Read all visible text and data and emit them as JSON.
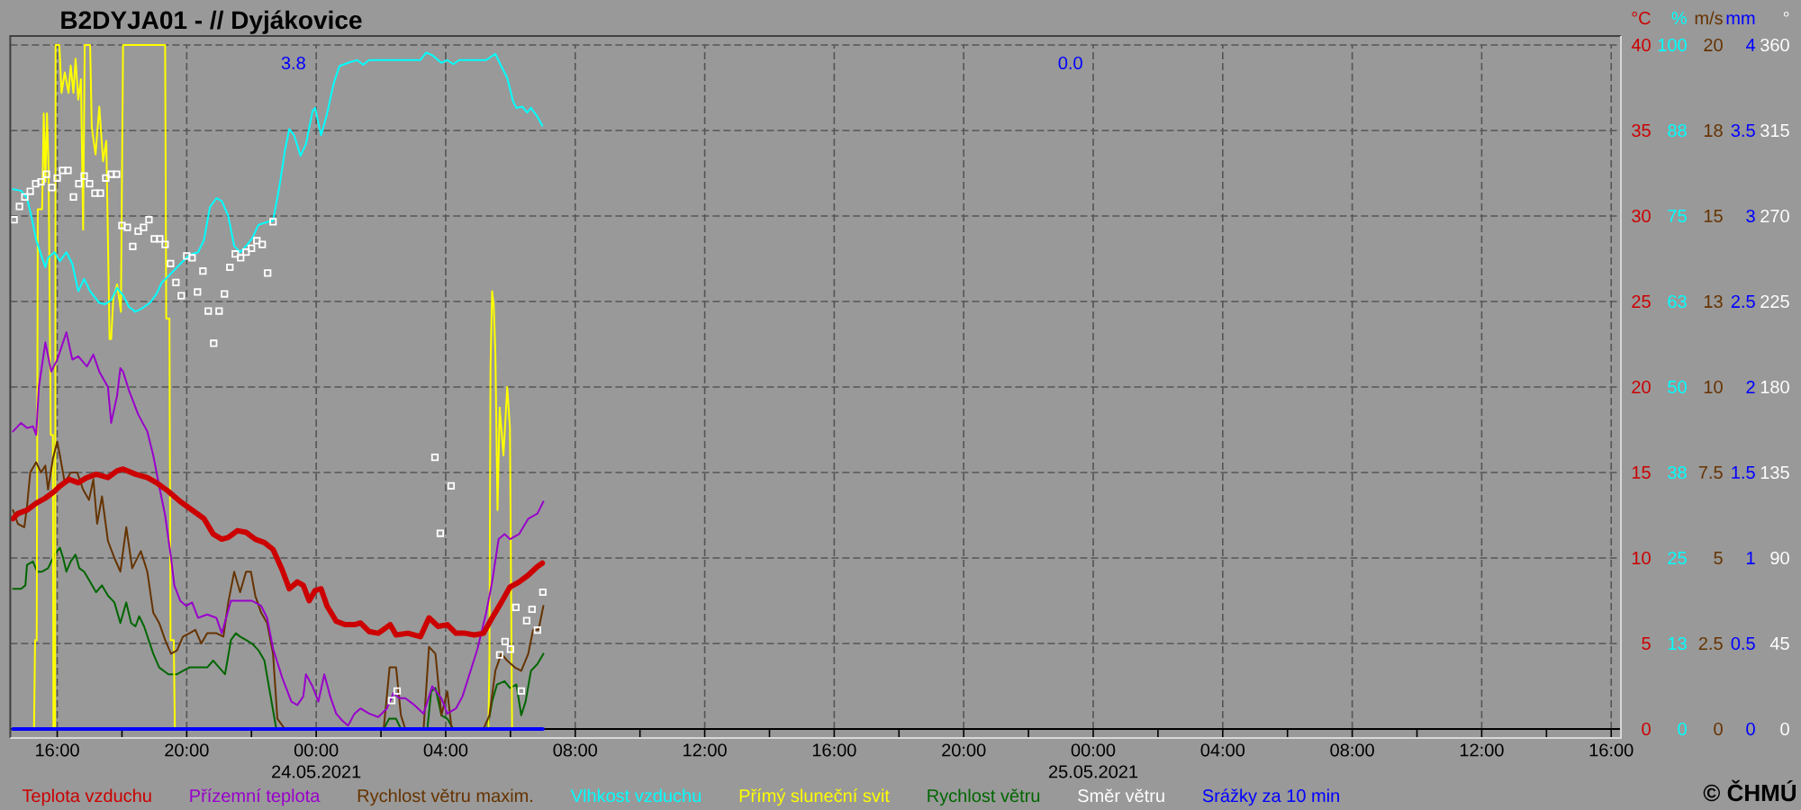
{
  "chart_data": [
    {
      "type": "line",
      "title": "B2DYJA01 - // Dyjákovice",
      "ylabel": "°C",
      "y2label": "%",
      "y3label": "m/s",
      "xlim": [
        "2021-05-23T14:33",
        "2021-05-25T16:18"
      ],
      "xticks": [
        {
          "value": "2021-05-23T16:00",
          "label": "16:00"
        },
        {
          "value": "2021-05-23T18:00",
          "label": null
        },
        {
          "value": "2021-05-23T20:00",
          "label": "20:00"
        },
        {
          "value": "2021-05-23T22:00",
          "label": null
        },
        {
          "value": "2021-05-24T00:00",
          "label": "00:00 24.05.2021"
        },
        {
          "value": "2021-05-24T02:00",
          "label": null
        },
        {
          "value": "2021-05-24T04:00",
          "label": "04:00"
        },
        {
          "value": "2021-05-24T06:00",
          "label": null
        },
        {
          "value": "2021-05-24T08:00",
          "label": "08:00"
        },
        {
          "value": "2021-05-24T10:00",
          "label": null
        },
        {
          "value": "2021-05-24T12:00",
          "label": "12:00"
        },
        {
          "value": "2021-05-24T14:00",
          "label": null
        },
        {
          "value": "2021-05-24T16:00",
          "label": "16:00"
        },
        {
          "value": "2021-05-24T18:00",
          "label": null
        },
        {
          "value": "2021-05-24T20:00",
          "label": "20:00"
        },
        {
          "value": "2021-05-24T22:00",
          "label": null
        },
        {
          "value": "2021-05-25T00:00",
          "label": "00:00 25.05.2021"
        },
        {
          "value": "2021-05-25T02:00",
          "label": null
        },
        {
          "value": "2021-05-25T04:00",
          "label": "04:00"
        },
        {
          "value": "2021-05-25T06:00",
          "label": null
        },
        {
          "value": "2021-05-25T08:00",
          "label": "08:00"
        },
        {
          "value": "2021-05-25T10:00",
          "label": null
        },
        {
          "value": "2021-05-25T12:00",
          "label": "12:00"
        },
        {
          "value": "2021-05-25T14:00",
          "label": null
        },
        {
          "value": "2021-05-25T16:00",
          "label": "16:00"
        }
      ],
      "ylim": [
        0,
        40
      ],
      "yticks": [
        0,
        5,
        10,
        15,
        20,
        25,
        30,
        35,
        40
      ],
      "y2lim": [
        0,
        100
      ],
      "y2ticks": [
        0,
        {
          "value": 12.5,
          "label": "13"
        },
        25,
        {
          "value": 37.5,
          "label": "38"
        },
        50,
        {
          "value": 62.5,
          "label": "63"
        },
        75,
        {
          "value": 87.5,
          "label": "88"
        },
        100
      ],
      "y3lim": [
        0,
        20
      ],
      "y3ticks": [
        0,
        2.5,
        5,
        7.5,
        10,
        {
          "value": 12.5,
          "label": "13"
        },
        15,
        {
          "value": 17.5,
          "label": "18"
        },
        20
      ],
      "grid": true,
      "legend": "bottom",
      "annotations": [
        "© ČHMÚ"
      ],
      "series": [
        {
          "name": "Teplota vzduchu",
          "color": "#cc0000",
          "x": [
            "2021-05-23T14:38",
            "2021-05-23T14:47",
            "2021-05-23T15:04",
            "2021-05-23T15:21",
            "2021-05-23T15:38",
            "2021-05-23T15:55",
            "2021-05-23T16:05",
            "2021-05-23T16:22",
            "2021-05-23T16:39",
            "2021-05-23T16:55",
            "2021-05-23T17:12",
            "2021-05-23T17:34",
            "2021-05-23T17:51",
            "2021-05-23T18:02",
            "2021-05-23T18:25",
            "2021-05-23T18:47",
            "2021-05-23T19:04",
            "2021-05-23T19:26",
            "2021-05-23T19:48",
            "2021-05-23T20:10",
            "2021-05-23T20:32",
            "2021-05-23T20:49",
            "2021-05-23T21:05",
            "2021-05-23T21:17",
            "2021-05-23T21:34",
            "2021-05-23T21:50",
            "2021-05-23T22:07",
            "2021-05-23T22:24",
            "2021-05-23T22:40",
            "2021-05-23T22:57",
            "2021-05-23T23:10",
            "2021-05-23T23:25",
            "2021-05-23T23:36",
            "2021-05-23T23:47",
            "2021-05-23T23:58",
            "2021-05-24T00:09",
            "2021-05-24T00:20",
            "2021-05-24T00:37",
            "2021-05-24T00:54",
            "2021-05-24T01:11",
            "2021-05-24T01:22",
            "2021-05-24T01:38",
            "2021-05-24T01:55",
            "2021-05-24T02:17",
            "2021-05-24T02:28",
            "2021-05-24T02:50",
            "2021-05-24T03:13",
            "2021-05-24T03:29",
            "2021-05-24T03:46",
            "2021-05-24T04:03",
            "2021-05-24T04:19",
            "2021-05-24T04:36",
            "2021-05-24T04:53",
            "2021-05-24T05:10",
            "2021-05-24T05:26",
            "2021-05-24T05:43",
            "2021-05-24T05:59",
            "2021-05-24T06:16",
            "2021-05-24T06:33",
            "2021-05-24T06:50",
            "2021-05-24T06:59"
          ],
          "values": [
            12.3,
            12.6,
            12.8,
            13.2,
            13.5,
            13.9,
            14.2,
            14.6,
            14.4,
            14.7,
            14.9,
            14.7,
            15.1,
            15.2,
            14.9,
            14.7,
            14.4,
            13.9,
            13.3,
            12.8,
            12.3,
            11.4,
            11.1,
            11.2,
            11.6,
            11.5,
            11.1,
            10.9,
            10.5,
            9.3,
            8.2,
            8.6,
            8.4,
            7.5,
            8.1,
            8.2,
            7.2,
            6.3,
            6.1,
            6.1,
            6.2,
            5.7,
            5.6,
            6.1,
            5.5,
            5.6,
            5.4,
            6.5,
            6.0,
            6.1,
            5.6,
            5.6,
            5.5,
            5.6,
            6.5,
            7.4,
            8.3,
            8.6,
            9.0,
            9.5,
            9.7
          ]
        },
        {
          "name": "Přízemní teplota",
          "color": "#9900cc",
          "x": [
            "2021-05-23T14:38",
            "2021-05-23T14:53",
            "2021-05-23T15:04",
            "2021-05-23T15:15",
            "2021-05-23T15:21",
            "2021-05-23T15:26",
            "2021-05-23T15:38",
            "2021-05-23T15:49",
            "2021-05-23T16:00",
            "2021-05-23T16:17",
            "2021-05-23T16:28",
            "2021-05-23T16:39",
            "2021-05-23T16:55",
            "2021-05-23T17:07",
            "2021-05-23T17:18",
            "2021-05-23T17:34",
            "2021-05-23T17:40",
            "2021-05-23T17:51",
            "2021-05-23T17:57",
            "2021-05-23T18:02",
            "2021-05-23T18:13",
            "2021-05-23T18:30",
            "2021-05-23T18:47",
            "2021-05-23T18:58",
            "2021-05-23T19:09",
            "2021-05-23T19:20",
            "2021-05-23T19:31",
            "2021-05-23T19:37",
            "2021-05-23T19:48",
            "2021-05-23T19:59",
            "2021-05-23T20:10",
            "2021-05-23T20:21",
            "2021-05-23T20:38",
            "2021-05-23T20:55",
            "2021-05-23T21:05",
            "2021-05-23T21:22",
            "2021-05-23T21:39",
            "2021-05-23T22:01",
            "2021-05-23T22:18",
            "2021-05-23T22:29",
            "2021-05-23T22:40",
            "2021-05-23T22:57",
            "2021-05-23T23:14",
            "2021-05-23T23:25",
            "2021-05-23T23:36",
            "2021-05-23T23:41",
            "2021-05-23T23:53",
            "2021-05-24T00:04",
            "2021-05-24T00:15",
            "2021-05-24T00:26",
            "2021-05-24T00:37",
            "2021-05-24T00:48",
            "2021-05-24T00:59",
            "2021-05-24T01:11",
            "2021-05-24T01:22",
            "2021-05-24T01:38",
            "2021-05-24T01:55",
            "2021-05-24T02:11",
            "2021-05-24T02:23",
            "2021-05-24T02:34",
            "2021-05-24T02:45",
            "2021-05-24T03:02",
            "2021-05-24T03:19",
            "2021-05-24T03:35",
            "2021-05-24T03:52",
            "2021-05-24T04:03",
            "2021-05-24T04:19",
            "2021-05-24T04:31",
            "2021-05-24T04:42",
            "2021-05-24T04:59",
            "2021-05-24T05:15",
            "2021-05-24T05:26",
            "2021-05-24T05:38",
            "2021-05-24T05:49",
            "2021-05-24T05:59",
            "2021-05-24T06:16",
            "2021-05-24T06:33",
            "2021-05-24T06:50",
            "2021-05-24T07:01"
          ],
          "values": [
            17.4,
            17.9,
            17.6,
            17.7,
            17.2,
            20.0,
            22.6,
            20.9,
            21.6,
            23.2,
            21.6,
            21.8,
            21.2,
            21.9,
            20.9,
            20.0,
            17.9,
            19.5,
            21.1,
            20.9,
            19.8,
            18.4,
            17.4,
            16.0,
            14.2,
            12.5,
            10.0,
            8.4,
            7.5,
            7.2,
            7.4,
            6.5,
            6.7,
            6.5,
            5.6,
            7.5,
            7.5,
            7.5,
            7.2,
            6.5,
            4.7,
            3.0,
            1.6,
            1.4,
            1.9,
            3.2,
            2.5,
            1.6,
            3.2,
            1.9,
            0.9,
            0.5,
            0.2,
            0.9,
            1.2,
            0.9,
            0.7,
            1.2,
            2.1,
            1.8,
            1.8,
            1.4,
            0.9,
            2.5,
            1.8,
            0.9,
            1.2,
            1.9,
            3.0,
            4.7,
            6.8,
            8.6,
            11.1,
            11.4,
            11.1,
            11.4,
            12.3,
            12.6,
            13.3
          ]
        },
        {
          "name": "Rychlost větru maxim.",
          "color": "#663300",
          "axis": "y3",
          "x": [
            "2021-05-23T14:38",
            "2021-05-23T14:47",
            "2021-05-23T14:59",
            "2021-05-23T15:04",
            "2021-05-23T15:10",
            "2021-05-23T15:21",
            "2021-05-23T15:30",
            "2021-05-23T15:38",
            "2021-05-23T15:43",
            "2021-05-23T15:52",
            "2021-05-23T16:00",
            "2021-05-23T16:05",
            "2021-05-23T16:14",
            "2021-05-23T16:25",
            "2021-05-23T16:37",
            "2021-05-23T16:48",
            "2021-05-23T16:59",
            "2021-05-23T17:07",
            "2021-05-23T17:14",
            "2021-05-23T17:23",
            "2021-05-23T17:34",
            "2021-05-23T17:46",
            "2021-05-23T17:57",
            "2021-05-23T18:08",
            "2021-05-23T18:19",
            "2021-05-23T18:35",
            "2021-05-23T18:47",
            "2021-05-23T18:58",
            "2021-05-23T19:09",
            "2021-05-23T19:20",
            "2021-05-23T19:31",
            "2021-05-23T19:42",
            "2021-05-23T19:53",
            "2021-05-23T20:05",
            "2021-05-23T20:16",
            "2021-05-23T20:27",
            "2021-05-23T20:38",
            "2021-05-23T20:55",
            "2021-05-23T21:08",
            "2021-05-23T21:17",
            "2021-05-23T21:28",
            "2021-05-23T21:39",
            "2021-05-23T21:50",
            "2021-05-23T21:59",
            "2021-05-23T22:07",
            "2021-05-23T22:18",
            "2021-05-23T22:29",
            "2021-05-23T22:40",
            "2021-05-23T22:48",
            "2021-05-23T23:02",
            "2021-05-24T02:05",
            "2021-05-24T02:16",
            "2021-05-24T02:28",
            "2021-05-24T02:37",
            "2021-05-24T02:45",
            "2021-05-24T03:19",
            "2021-05-24T03:29",
            "2021-05-24T03:41",
            "2021-05-24T03:52",
            "2021-05-24T04:03",
            "2021-05-24T04:11",
            "2021-05-24T05:10",
            "2021-05-24T05:21",
            "2021-05-24T05:32",
            "2021-05-24T05:43",
            "2021-05-24T05:54",
            "2021-05-24T06:08",
            "2021-05-24T06:20",
            "2021-05-24T06:33",
            "2021-05-24T06:42",
            "2021-05-24T06:52",
            "2021-05-24T07:01"
          ],
          "values": [
            6.4,
            6.0,
            5.9,
            6.5,
            7.5,
            7.8,
            7.5,
            7.7,
            7.0,
            7.9,
            8.4,
            8.0,
            7.2,
            7.5,
            7.5,
            7.0,
            6.7,
            7.3,
            6.0,
            6.8,
            5.5,
            5.0,
            4.6,
            5.9,
            4.7,
            5.2,
            4.6,
            3.4,
            3.1,
            2.6,
            2.2,
            2.3,
            2.7,
            2.8,
            2.9,
            2.5,
            2.8,
            2.8,
            2.7,
            3.7,
            4.6,
            4.0,
            4.6,
            4.6,
            3.9,
            3.4,
            3.1,
            2.2,
            0.3,
            0,
            0,
            1.8,
            1.8,
            0.4,
            0,
            0,
            2.4,
            2.2,
            0.4,
            1.1,
            0,
            0,
            0.4,
            1.7,
            2.2,
            2.0,
            1.8,
            1.7,
            2.2,
            2.9,
            2.9,
            3.6
          ]
        },
        {
          "name": "Vlhkost vzduchu",
          "color": "#00ffff",
          "axis": "y2",
          "x": [
            "2021-05-23T14:38",
            "2021-05-23T14:53",
            "2021-05-23T15:04",
            "2021-05-23T15:12",
            "2021-05-23T15:21",
            "2021-05-23T15:32",
            "2021-05-23T15:38",
            "2021-05-23T15:43",
            "2021-05-23T15:55",
            "2021-05-23T16:05",
            "2021-05-23T16:17",
            "2021-05-23T16:28",
            "2021-05-23T16:39",
            "2021-05-23T16:50",
            "2021-05-23T17:01",
            "2021-05-23T17:18",
            "2021-05-23T17:29",
            "2021-05-23T17:40",
            "2021-05-23T17:51",
            "2021-05-23T18:02",
            "2021-05-23T18:13",
            "2021-05-23T18:25",
            "2021-05-23T18:35",
            "2021-05-23T18:52",
            "2021-05-23T19:04",
            "2021-05-23T19:14",
            "2021-05-23T19:26",
            "2021-05-23T19:48",
            "2021-05-23T20:05",
            "2021-05-23T20:21",
            "2021-05-23T20:32",
            "2021-05-23T20:43",
            "2021-05-23T20:55",
            "2021-05-23T21:05",
            "2021-05-23T21:17",
            "2021-05-23T21:28",
            "2021-05-23T21:39",
            "2021-05-23T21:50",
            "2021-05-23T22:01",
            "2021-05-23T22:13",
            "2021-05-23T22:29",
            "2021-05-23T22:40",
            "2021-05-23T22:52",
            "2021-05-23T23:02",
            "2021-05-23T23:10",
            "2021-05-23T23:19",
            "2021-05-23T23:31",
            "2021-05-23T23:41",
            "2021-05-23T23:53",
            "2021-05-23T23:58",
            "2021-05-24T00:09",
            "2021-05-24T00:20",
            "2021-05-24T00:32",
            "2021-05-24T00:43",
            "2021-05-24T00:59",
            "2021-05-24T01:16",
            "2021-05-24T01:27",
            "2021-05-24T01:38",
            "2021-05-24T03:13",
            "2021-05-24T03:24",
            "2021-05-24T03:35",
            "2021-05-24T03:52",
            "2021-05-24T04:03",
            "2021-05-24T04:14",
            "2021-05-24T04:25",
            "2021-05-24T05:15",
            "2021-05-24T05:32",
            "2021-05-24T05:43",
            "2021-05-24T05:54",
            "2021-05-24T06:05",
            "2021-05-24T06:11",
            "2021-05-24T06:22",
            "2021-05-24T06:31",
            "2021-05-24T06:38",
            "2021-05-24T06:50",
            "2021-05-24T06:59"
          ],
          "values": [
            78.9,
            78.7,
            77.6,
            75.0,
            71.5,
            68.9,
            67.5,
            68.9,
            69.7,
            68.4,
            69.7,
            68.0,
            64.0,
            65.8,
            64.0,
            62.3,
            62.1,
            62.7,
            64.5,
            63.4,
            61.7,
            61.0,
            61.4,
            62.3,
            63.6,
            65.3,
            66.2,
            68.0,
            69.3,
            69.7,
            71.5,
            76.3,
            77.6,
            77.2,
            75.0,
            70.6,
            69.7,
            70.6,
            71.7,
            73.7,
            74.1,
            74.3,
            79.4,
            84.6,
            87.7,
            86.8,
            83.8,
            85.5,
            90.3,
            90.8,
            86.8,
            89.9,
            94.3,
            96.9,
            97.4,
            97.8,
            97.1,
            97.8,
            97.8,
            98.9,
            98.5,
            97.4,
            97.8,
            97.2,
            97.8,
            97.8,
            98.7,
            96.9,
            95.2,
            91.7,
            90.8,
            91.0,
            90.1,
            90.8,
            89.5,
            88.2
          ]
        },
        {
          "name": "Přímý sluneční svit",
          "color": "#ffff00",
          "axis": "y2",
          "x": [
            "2021-05-23T14:38",
            "2021-05-23T15:17",
            "2021-05-23T15:19",
            "2021-05-23T15:22",
            "2021-05-23T15:24",
            "2021-05-23T15:32",
            "2021-05-23T15:35",
            "2021-05-23T15:38",
            "2021-05-23T15:41",
            "2021-05-23T15:44",
            "2021-05-23T15:48",
            "2021-05-23T15:52",
            "2021-05-23T15:53",
            "2021-05-23T15:56",
            "2021-05-23T15:57",
            "2021-05-23T16:04",
            "2021-05-23T16:08",
            "2021-05-23T16:14",
            "2021-05-23T16:21",
            "2021-05-23T16:25",
            "2021-05-23T16:30",
            "2021-05-23T16:34",
            "2021-05-23T16:39",
            "2021-05-23T16:44",
            "2021-05-23T16:48",
            "2021-05-23T16:51",
            "2021-05-23T17:01",
            "2021-05-23T17:04",
            "2021-05-23T17:11",
            "2021-05-23T17:18",
            "2021-05-23T17:25",
            "2021-05-23T17:31",
            "2021-05-23T17:37",
            "2021-05-23T17:40",
            "2021-05-23T17:44",
            "2021-05-23T17:51",
            "2021-05-23T17:58",
            "2021-05-23T18:02",
            "2021-05-23T19:20",
            "2021-05-23T19:22",
            "2021-05-23T19:28",
            "2021-05-23T19:30",
            "2021-05-23T19:36",
            "2021-05-23T19:38",
            "2021-05-24T05:19",
            "2021-05-24T05:21",
            "2021-05-24T05:23",
            "2021-05-24T05:26",
            "2021-05-24T05:29",
            "2021-05-24T05:32",
            "2021-05-24T05:36",
            "2021-05-24T05:40",
            "2021-05-24T05:43",
            "2021-05-24T05:47",
            "2021-05-24T05:54",
            "2021-05-24T05:59",
            "2021-05-24T06:03",
            "2021-05-24T06:59"
          ],
          "values": [
            0,
            0,
            13,
            13,
            76,
            76,
            90,
            80,
            90,
            82,
            43,
            43,
            0,
            0,
            100,
            100,
            93,
            96,
            93,
            97,
            93,
            98,
            92,
            95,
            73,
            100,
            100,
            88,
            84,
            91,
            83,
            86,
            57,
            57,
            63,
            65,
            61,
            100,
            100,
            60,
            60,
            13,
            13,
            0,
            0,
            10,
            53,
            64,
            62,
            55,
            32,
            47,
            44,
            40,
            50,
            44,
            0,
            0
          ]
        },
        {
          "name": "Rychlost větru",
          "color": "#006600",
          "axis": "y3",
          "x": [
            "2021-05-23T14:38",
            "2021-05-23T14:53",
            "2021-05-23T15:01",
            "2021-05-23T15:04",
            "2021-05-23T15:15",
            "2021-05-23T15:23",
            "2021-05-23T15:32",
            "2021-05-23T15:43",
            "2021-05-23T15:55",
            "2021-05-23T16:05",
            "2021-05-23T16:11",
            "2021-05-23T16:17",
            "2021-05-23T16:25",
            "2021-05-23T16:34",
            "2021-05-23T16:41",
            "2021-05-23T16:50",
            "2021-05-23T17:01",
            "2021-05-23T17:12",
            "2021-05-23T17:23",
            "2021-05-23T17:34",
            "2021-05-23T17:46",
            "2021-05-23T17:57",
            "2021-05-23T18:08",
            "2021-05-23T18:17",
            "2021-05-23T18:25",
            "2021-05-23T18:32",
            "2021-05-23T18:41",
            "2021-05-23T18:58",
            "2021-05-23T19:09",
            "2021-05-23T19:26",
            "2021-05-23T19:42",
            "2021-05-23T19:53",
            "2021-05-23T20:05",
            "2021-05-23T20:16",
            "2021-05-23T20:27",
            "2021-05-23T20:38",
            "2021-05-23T20:49",
            "2021-05-23T21:00",
            "2021-05-23T21:11",
            "2021-05-23T21:22",
            "2021-05-23T21:31",
            "2021-05-23T21:39",
            "2021-05-23T21:50",
            "2021-05-23T22:01",
            "2021-05-23T22:13",
            "2021-05-23T22:24",
            "2021-05-23T22:35",
            "2021-05-23T22:46",
            "2021-05-24T02:05",
            "2021-05-24T02:15",
            "2021-05-24T02:28",
            "2021-05-24T02:37",
            "2021-05-24T03:26",
            "2021-05-24T03:33",
            "2021-05-24T03:41",
            "2021-05-24T03:52",
            "2021-05-24T04:03",
            "2021-05-24T04:14",
            "2021-05-24T05:17",
            "2021-05-24T05:26",
            "2021-05-24T05:35",
            "2021-05-24T05:49",
            "2021-05-24T05:59",
            "2021-05-24T06:11",
            "2021-05-24T06:20",
            "2021-05-24T06:28",
            "2021-05-24T06:38",
            "2021-05-24T06:50",
            "2021-05-24T07:01"
          ],
          "values": [
            4.1,
            4.1,
            4.2,
            4.8,
            4.9,
            4.6,
            4.6,
            4.7,
            5.1,
            5.3,
            5.0,
            4.6,
            4.9,
            5.1,
            4.7,
            4.6,
            4.3,
            4.0,
            4.2,
            3.9,
            3.7,
            3.1,
            3.7,
            3.1,
            3.0,
            3.3,
            3.0,
            2.2,
            1.8,
            1.6,
            1.6,
            1.7,
            1.8,
            1.8,
            1.8,
            1.8,
            2.0,
            1.8,
            1.6,
            2.6,
            2.8,
            2.7,
            2.6,
            2.5,
            2.3,
            2.0,
            1.0,
            0,
            0,
            0.3,
            0.3,
            0,
            0,
            1.1,
            1.2,
            0.4,
            0.3,
            0,
            0,
            0.8,
            1.3,
            1.4,
            1.2,
            1.3,
            0.4,
            0.8,
            1.7,
            1.9,
            2.2
          ]
        }
      ]
    },
    {
      "type": "line",
      "ylabel": "mm",
      "y2label": "°",
      "xlim": [
        "2021-05-23T14:33",
        "2021-05-25T16:18"
      ],
      "ylim": [
        0,
        4
      ],
      "yticks": [
        0,
        0.5,
        1,
        1.5,
        2,
        2.5,
        3,
        3.5,
        4
      ],
      "y2lim": [
        0,
        360
      ],
      "y2ticks": [
        0,
        45,
        90,
        135,
        180,
        225,
        270,
        315,
        360
      ],
      "tick_labels": "y",
      "legend": "bottom",
      "annotations": [
        "3.8",
        "0.0"
      ],
      "series": [
        {
          "name": "Směr větru",
          "color": "#ffffff",
          "axis": "y2",
          "type": "scatter",
          "marker": "square",
          "x": [
            "2021-05-23T14:40",
            "2021-05-23T14:50",
            "2021-05-23T15:00",
            "2021-05-23T15:10",
            "2021-05-23T15:20",
            "2021-05-23T15:30",
            "2021-05-23T15:40",
            "2021-05-23T15:50",
            "2021-05-23T16:00",
            "2021-05-23T16:10",
            "2021-05-23T16:20",
            "2021-05-23T16:30",
            "2021-05-23T16:40",
            "2021-05-23T16:50",
            "2021-05-23T17:00",
            "2021-05-23T17:10",
            "2021-05-23T17:20",
            "2021-05-23T17:30",
            "2021-05-23T17:40",
            "2021-05-23T17:50",
            "2021-05-23T18:00",
            "2021-05-23T18:10",
            "2021-05-23T18:20",
            "2021-05-23T18:30",
            "2021-05-23T18:40",
            "2021-05-23T18:50",
            "2021-05-23T19:00",
            "2021-05-23T19:10",
            "2021-05-23T19:20",
            "2021-05-23T19:30",
            "2021-05-23T19:40",
            "2021-05-23T19:50",
            "2021-05-23T20:00",
            "2021-05-23T20:10",
            "2021-05-23T20:20",
            "2021-05-23T20:30",
            "2021-05-23T20:40",
            "2021-05-23T20:50",
            "2021-05-23T21:00",
            "2021-05-23T21:10",
            "2021-05-23T21:20",
            "2021-05-23T21:30",
            "2021-05-23T21:40",
            "2021-05-23T21:50",
            "2021-05-23T22:00",
            "2021-05-23T22:10",
            "2021-05-23T22:20",
            "2021-05-23T22:30",
            "2021-05-23T22:40",
            "2021-05-24T02:20",
            "2021-05-24T02:30",
            "2021-05-24T03:40",
            "2021-05-24T03:50",
            "2021-05-24T04:10",
            "2021-05-24T05:40",
            "2021-05-24T05:50",
            "2021-05-24T06:00",
            "2021-05-24T06:10",
            "2021-05-24T06:20",
            "2021-05-24T06:30",
            "2021-05-24T06:40",
            "2021-05-24T06:50",
            "2021-05-24T07:00"
          ],
          "values": [
            268,
            275,
            280,
            283,
            287,
            288,
            292,
            285,
            290,
            294,
            294,
            280,
            287,
            291,
            287,
            282,
            282,
            290,
            292,
            292,
            265,
            264,
            254,
            262,
            264,
            268,
            258,
            258,
            255,
            245,
            235,
            228,
            249,
            248,
            230,
            241,
            220,
            203,
            220,
            229,
            243,
            250,
            248,
            251,
            253,
            257,
            255,
            240,
            267,
            15,
            20,
            143,
            103,
            128,
            39,
            46,
            42,
            64,
            20,
            57,
            63,
            52,
            72
          ]
        },
        {
          "name": "Srážky za 10 min",
          "color": "#0000ff",
          "x": [
            "2021-05-23T14:38",
            "2021-05-24T07:00"
          ],
          "values": [
            0,
            0
          ]
        }
      ]
    }
  ]
}
